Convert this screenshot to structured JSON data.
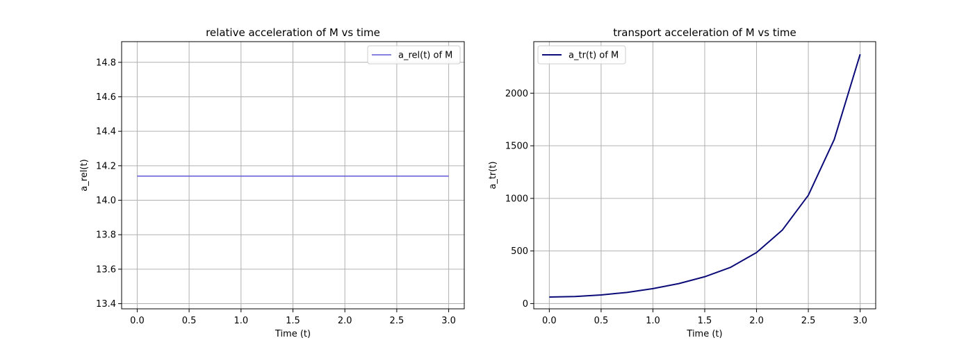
{
  "chart_data": [
    {
      "type": "line",
      "title": "relative acceleration of M vs time",
      "xlabel": "Time (t)",
      "ylabel": "a_rel(t)",
      "xlim": [
        -0.15,
        3.15
      ],
      "ylim": [
        13.37,
        14.92
      ],
      "xticks": [
        0.0,
        0.5,
        1.0,
        1.5,
        2.0,
        2.5,
        3.0
      ],
      "xtick_labels": [
        "0.0",
        "0.5",
        "1.0",
        "1.5",
        "2.0",
        "2.5",
        "3.0"
      ],
      "yticks": [
        13.4,
        13.6,
        13.8,
        14.0,
        14.2,
        14.4,
        14.6,
        14.8
      ],
      "ytick_labels": [
        "13.4",
        "13.6",
        "13.8",
        "14.0",
        "14.2",
        "14.4",
        "14.6",
        "14.8"
      ],
      "grid": true,
      "legend_position": "top-right",
      "series": [
        {
          "name": "a_rel(t) of M",
          "color": "#5f57d4",
          "x": [
            0.0,
            0.5,
            1.0,
            1.5,
            2.0,
            2.5,
            3.0
          ],
          "y": [
            14.14,
            14.14,
            14.14,
            14.14,
            14.14,
            14.14,
            14.14
          ]
        }
      ]
    },
    {
      "type": "line",
      "title": "transport acceleration of M vs time",
      "xlabel": "Time (t)",
      "ylabel": "a_tr(t)",
      "xlim": [
        -0.15,
        3.15
      ],
      "ylim": [
        -50,
        2490
      ],
      "xticks": [
        0.0,
        0.5,
        1.0,
        1.5,
        2.0,
        2.5,
        3.0
      ],
      "xtick_labels": [
        "0.0",
        "0.5",
        "1.0",
        "1.5",
        "2.0",
        "2.5",
        "3.0"
      ],
      "yticks": [
        0,
        500,
        1000,
        1500,
        2000
      ],
      "ytick_labels": [
        "0",
        "500",
        "1000",
        "1500",
        "2000"
      ],
      "grid": true,
      "legend_position": "top-left",
      "series": [
        {
          "name": "a_tr(t) of M",
          "color": "#0a0a78",
          "x": [
            0.0,
            0.25,
            0.5,
            0.75,
            1.0,
            1.25,
            1.5,
            1.75,
            2.0,
            2.25,
            2.5,
            2.75,
            3.0
          ],
          "y": [
            62,
            67,
            82,
            106,
            142,
            190,
            255,
            345,
            485,
            700,
            1030,
            1560,
            2370
          ]
        }
      ]
    }
  ]
}
